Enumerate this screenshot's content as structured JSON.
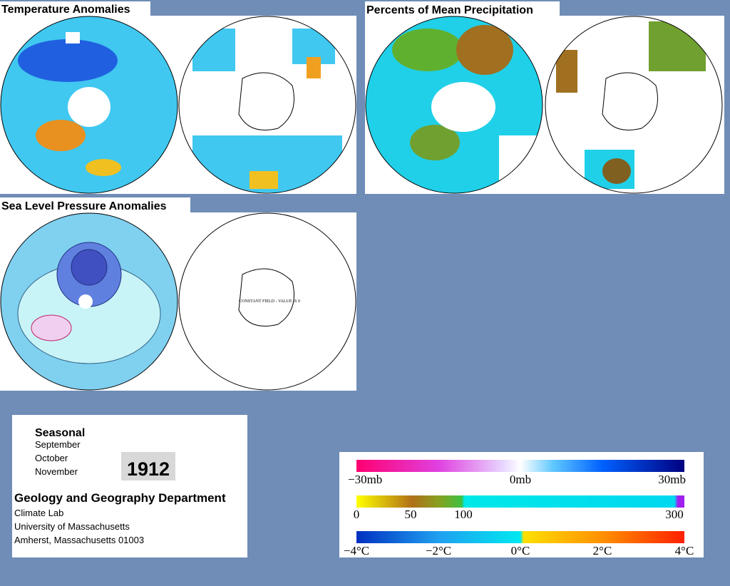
{
  "panels": [
    {
      "title": "Temperature Anomalies"
    },
    {
      "title": "Percents of Mean Precipitation"
    },
    {
      "title": "Sea Level Pressure Anomalies",
      "note": "CONSTANT FIELD - VALUE IS 0"
    }
  ],
  "info": {
    "period": "Seasonal",
    "months": [
      "September",
      "October",
      "November"
    ],
    "year": "1912",
    "department": "Geology and Geography Department",
    "lines": [
      "Climate Lab",
      "University of Massachusetts",
      "Amherst, Massachusetts 01003"
    ]
  },
  "legend": {
    "pressure": [
      "−30mb",
      "0mb",
      "30mb"
    ],
    "precipitation": [
      "0",
      "50",
      "100",
      "300"
    ],
    "temperature": [
      "−4°C",
      "−2°C",
      "0°C",
      "2°C",
      "4°C"
    ]
  }
}
